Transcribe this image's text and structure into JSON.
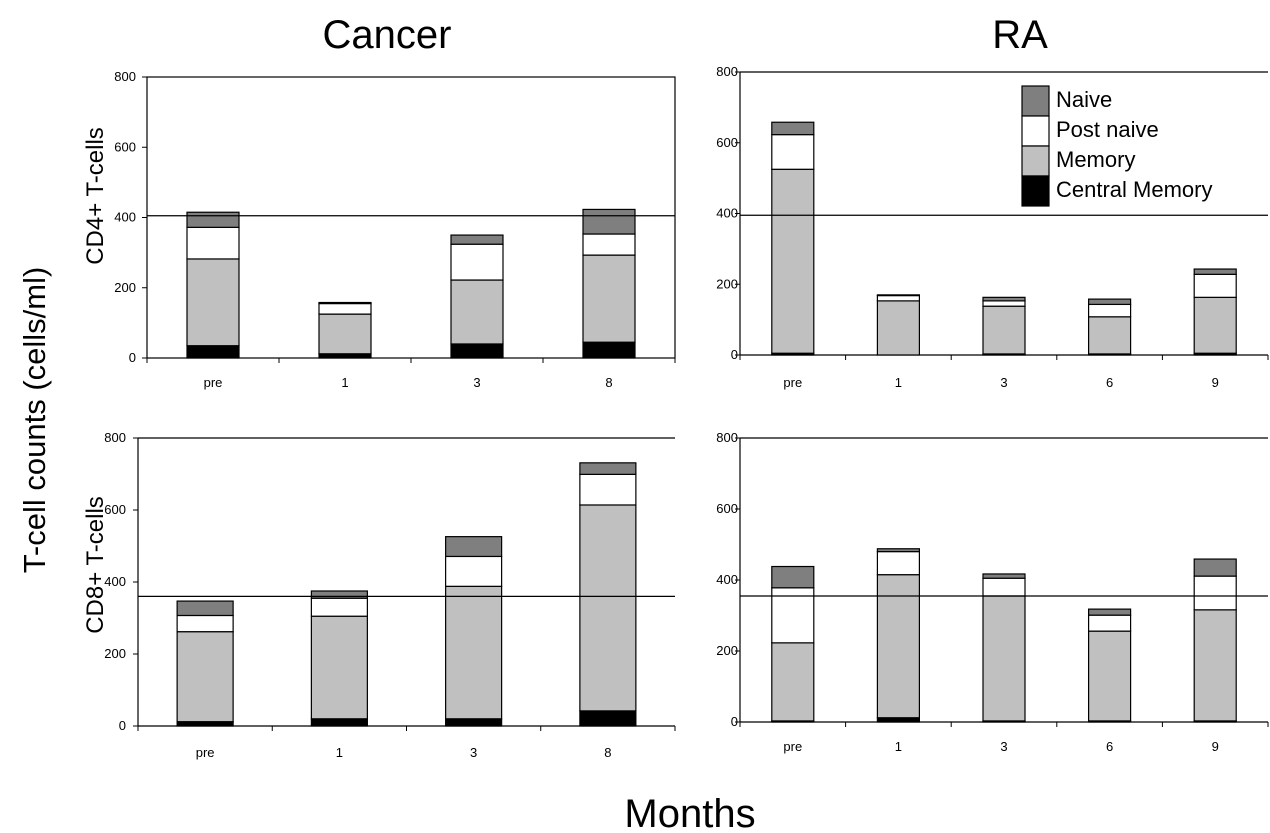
{
  "titles": {
    "left": "Cancer",
    "right": "RA",
    "row_top": "CD4+ T-cells",
    "row_bottom": "CD8+ T-cells",
    "y_axis": "T-cell counts  (cells/ml)",
    "x_axis": "Months"
  },
  "legend": [
    {
      "name": "Naive",
      "color": "#7f7f7f"
    },
    {
      "name": "Post naive",
      "color": "#ffffff"
    },
    {
      "name": "Memory",
      "color": "#c0c0c0"
    },
    {
      "name": "Central Memory",
      "color": "#000000"
    }
  ],
  "chart_data": [
    {
      "type": "bar",
      "stacked": true,
      "panel": "Cancer CD4+",
      "categories": [
        "pre",
        "1",
        "3",
        "8"
      ],
      "yticks": [
        0,
        200,
        400,
        600,
        800
      ],
      "ylim": [
        0,
        800
      ],
      "reference_line": 405,
      "series": [
        {
          "name": "Central Memory",
          "values": [
            35,
            12,
            40,
            45
          ]
        },
        {
          "name": "Memory",
          "values": [
            247,
            113,
            182,
            248
          ]
        },
        {
          "name": "Post naive",
          "values": [
            90,
            30,
            102,
            60
          ]
        },
        {
          "name": "Naive",
          "values": [
            43,
            3,
            26,
            70
          ]
        }
      ]
    },
    {
      "type": "bar",
      "stacked": true,
      "panel": "RA CD4+",
      "categories": [
        "pre",
        "1",
        "3",
        "6",
        "9"
      ],
      "yticks": [
        0,
        200,
        400,
        600,
        800
      ],
      "ylim": [
        0,
        800
      ],
      "reference_line": 395,
      "series": [
        {
          "name": "Central Memory",
          "values": [
            5,
            0,
            3,
            3,
            5
          ]
        },
        {
          "name": "Memory",
          "values": [
            520,
            153,
            135,
            105,
            158
          ]
        },
        {
          "name": "Post naive",
          "values": [
            98,
            15,
            15,
            35,
            65
          ]
        },
        {
          "name": "Naive",
          "values": [
            35,
            2,
            10,
            15,
            15
          ]
        }
      ]
    },
    {
      "type": "bar",
      "stacked": true,
      "panel": "Cancer CD8+",
      "categories": [
        "pre",
        "1",
        "3",
        "8"
      ],
      "yticks": [
        0,
        200,
        400,
        600,
        800
      ],
      "ylim": [
        0,
        800
      ],
      "reference_line": 360,
      "series": [
        {
          "name": "Central Memory",
          "values": [
            12,
            20,
            20,
            42
          ]
        },
        {
          "name": "Memory",
          "values": [
            250,
            285,
            368,
            572
          ]
        },
        {
          "name": "Post naive",
          "values": [
            45,
            50,
            83,
            85
          ]
        },
        {
          "name": "Naive",
          "values": [
            40,
            20,
            55,
            32
          ]
        }
      ]
    },
    {
      "type": "bar",
      "stacked": true,
      "panel": "RA CD8+",
      "categories": [
        "pre",
        "1",
        "3",
        "6",
        "9"
      ],
      "yticks": [
        0,
        200,
        400,
        600,
        800
      ],
      "ylim": [
        0,
        800
      ],
      "reference_line": 355,
      "series": [
        {
          "name": "Central Memory",
          "values": [
            3,
            12,
            3,
            3,
            3
          ]
        },
        {
          "name": "Memory",
          "values": [
            220,
            403,
            352,
            253,
            313
          ]
        },
        {
          "name": "Post naive",
          "values": [
            155,
            65,
            50,
            45,
            95
          ]
        },
        {
          "name": "Naive",
          "values": [
            60,
            8,
            12,
            17,
            48
          ]
        }
      ]
    }
  ]
}
